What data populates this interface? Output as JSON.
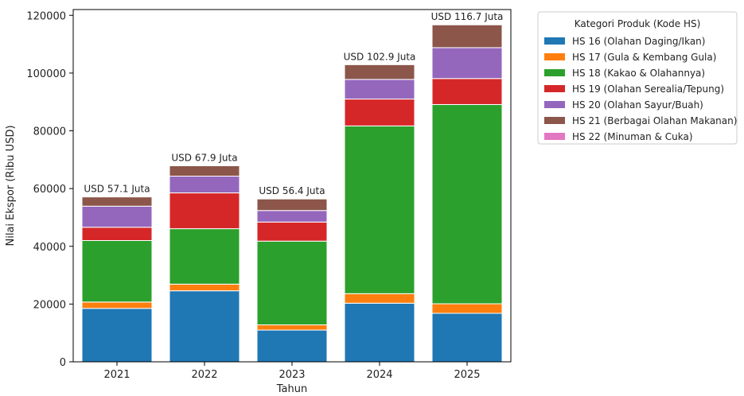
{
  "chart_data": {
    "type": "bar",
    "stacked": true,
    "categories": [
      "2021",
      "2022",
      "2023",
      "2024",
      "2025"
    ],
    "series": [
      {
        "name": "HS 16 (Olahan Daging/Ikan)",
        "color": "#1f77b4",
        "values": [
          18500,
          24600,
          11000,
          20300,
          16800
        ]
      },
      {
        "name": "HS 17 (Gula & Kembang Gula)",
        "color": "#ff7f0e",
        "values": [
          2200,
          2300,
          1800,
          3300,
          3300
        ]
      },
      {
        "name": "HS 18 (Kakao & Olahannya)",
        "color": "#2ca02c",
        "values": [
          21300,
          19200,
          29000,
          58100,
          69000
        ]
      },
      {
        "name": "HS 19 (Olahan Serealia/Tepung)",
        "color": "#d62728",
        "values": [
          4600,
          12400,
          6600,
          9300,
          9000
        ]
      },
      {
        "name": "HS 20 (Olahan Sayur/Buah)",
        "color": "#9467bd",
        "values": [
          7300,
          5800,
          4000,
          6800,
          10700
        ]
      },
      {
        "name": "HS 21 (Berbagai Olahan Makanan)",
        "color": "#8c564b",
        "values": [
          3200,
          3600,
          4000,
          5100,
          7900
        ]
      },
      {
        "name": "HS 22 (Minuman & Cuka)",
        "color": "#e377c2",
        "values": [
          0,
          0,
          0,
          0,
          0
        ]
      }
    ],
    "totals_labels": [
      "USD 57.1 Juta",
      "USD 67.9 Juta",
      "USD 56.4 Juta",
      "USD 102.9 Juta",
      "USD 116.7 Juta"
    ],
    "xlabel": "Tahun",
    "ylabel": "Nilai Ekspor (Ribu USD)",
    "ylim": [
      0,
      122000
    ],
    "yticks": [
      0,
      20000,
      40000,
      60000,
      80000,
      100000,
      120000
    ],
    "ytick_labels": [
      "0",
      "20000",
      "40000",
      "60000",
      "80000",
      "100000",
      "120000"
    ],
    "legend_title": "Kategori Produk (Kode HS)",
    "legend_position": "outside-right",
    "grid": false
  }
}
